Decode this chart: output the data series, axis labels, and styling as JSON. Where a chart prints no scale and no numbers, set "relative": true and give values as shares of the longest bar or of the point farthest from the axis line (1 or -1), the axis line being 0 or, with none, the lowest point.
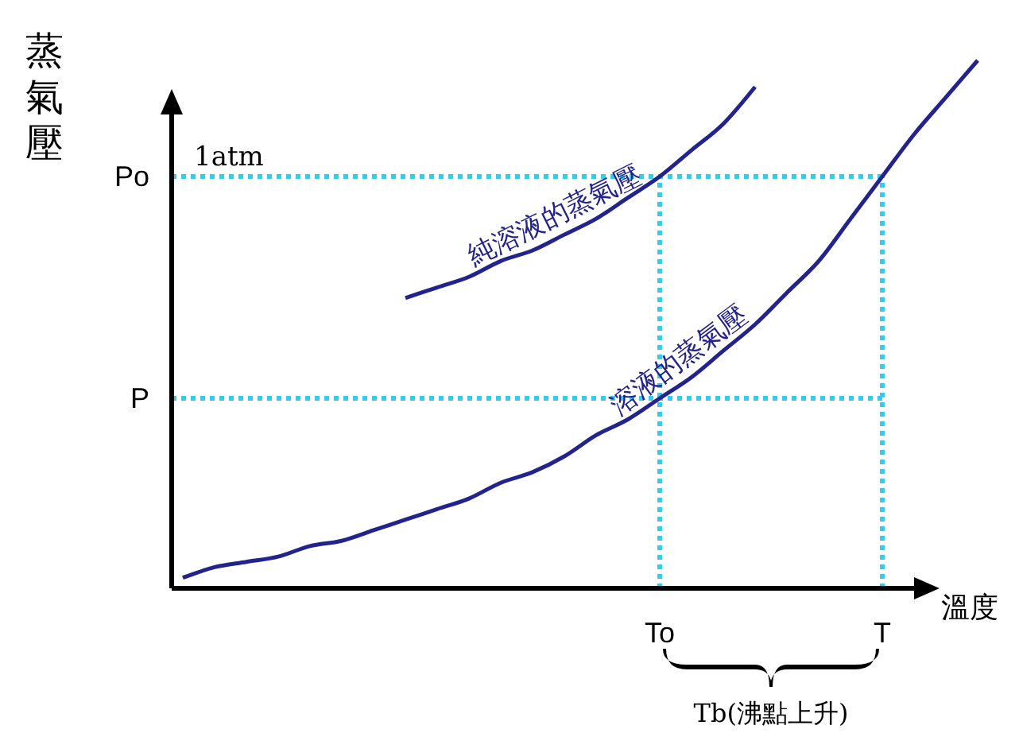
{
  "chart_data": {
    "type": "line",
    "relative": true,
    "xlabel": "溫度",
    "ylabel": "蒸氣壓",
    "legend": false,
    "marker": "none",
    "line_style": "solid",
    "categories": [
      null,
      null,
      null,
      null,
      null,
      null,
      null,
      null,
      null,
      null,
      null,
      null,
      null,
      null,
      null,
      "To",
      null,
      null,
      null,
      null,
      null,
      null,
      "T",
      null,
      null,
      null
    ],
    "series": [
      {
        "name": "純溶液的蒸氣壓",
        "color": "#23238e",
        "values": [
          null,
          null,
          null,
          null,
          null,
          null,
          null,
          0.55,
          0.57,
          0.59,
          0.62,
          0.64,
          0.67,
          0.7,
          0.74,
          0.78,
          0.83,
          0.88,
          0.95,
          null,
          null,
          null,
          null,
          null,
          null,
          null
        ]
      },
      {
        "name": "溶液的蒸氣壓",
        "color": "#23238e",
        "values": [
          0.02,
          0.04,
          0.05,
          0.06,
          0.08,
          0.09,
          0.11,
          0.13,
          0.15,
          0.17,
          0.2,
          0.22,
          0.25,
          0.29,
          0.32,
          0.36,
          0.4,
          0.45,
          0.5,
          0.56,
          0.62,
          0.7,
          0.78,
          0.86,
          0.93,
          1.0
        ]
      }
    ],
    "ref_lines": [
      {
        "axis": "y",
        "value": 0.78,
        "label": "Po",
        "color": "#33ccee",
        "line_style": "dotted"
      },
      {
        "axis": "y",
        "value": 0.36,
        "label": "P",
        "color": "#33ccee",
        "line_style": "dotted"
      },
      {
        "axis": "x",
        "value": "To",
        "color": "#33ccee",
        "line_style": "dotted"
      },
      {
        "axis": "x",
        "value": "T",
        "color": "#33ccee",
        "line_style": "dotted"
      }
    ],
    "annotations": [
      "1atm",
      "Tb(沸點上升)"
    ]
  }
}
